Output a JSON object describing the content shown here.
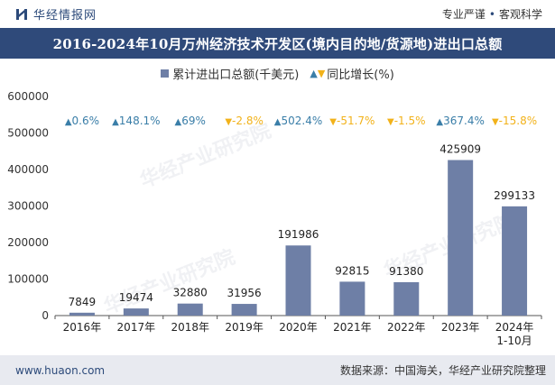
{
  "header": {
    "brand": "华经情报网",
    "tagline_left": "专业严谨",
    "tagline_right": "客观科学"
  },
  "title": "2016-2024年10月万州经济技术开发区(境内目的地/货源地)进出口总额",
  "legend": {
    "bar_label": "累计进出口总额(千美元)",
    "growth_label": "同比增长(%)"
  },
  "footer": {
    "url": "www.huaon.com",
    "source": "数据来源：中国海关，华经产业研究院整理"
  },
  "watermark": {
    "text": "华经产业研究院",
    "url": "www.huaon.com"
  },
  "colors": {
    "bar": "#6e7fa6",
    "up": "#3a7ea8",
    "down": "#f2b21a",
    "title_bg": "#2f4a7a"
  },
  "chart_data": {
    "type": "bar",
    "categories": [
      "2016年",
      "2017年",
      "2018年",
      "2019年",
      "2020年",
      "2021年",
      "2022年",
      "2023年",
      "2024年\n1-10月"
    ],
    "series": [
      {
        "name": "累计进出口总额(千美元)",
        "values": [
          7849,
          19474,
          32880,
          31956,
          191986,
          92815,
          91380,
          425909,
          299133
        ]
      },
      {
        "name": "同比增长(%)",
        "values": [
          0.6,
          148.1,
          69,
          -2.8,
          502.4,
          -51.7,
          -1.5,
          367.4,
          -15.8
        ]
      }
    ],
    "bar_labels": [
      "7849",
      "19474",
      "32880",
      "31956",
      "191986",
      "92815",
      "91380",
      "425909",
      "299133"
    ],
    "growth_labels": [
      "0.6%",
      "148.1%",
      "69%",
      "-2.8%",
      "502.4%",
      "-51.7%",
      "-1.5%",
      "367.4%",
      "-15.8%"
    ],
    "y_ticks": [
      "0",
      "100000",
      "200000",
      "300000",
      "400000",
      "500000",
      "600000"
    ],
    "ylim": [
      0,
      600000
    ],
    "legend_position": "top-center"
  }
}
